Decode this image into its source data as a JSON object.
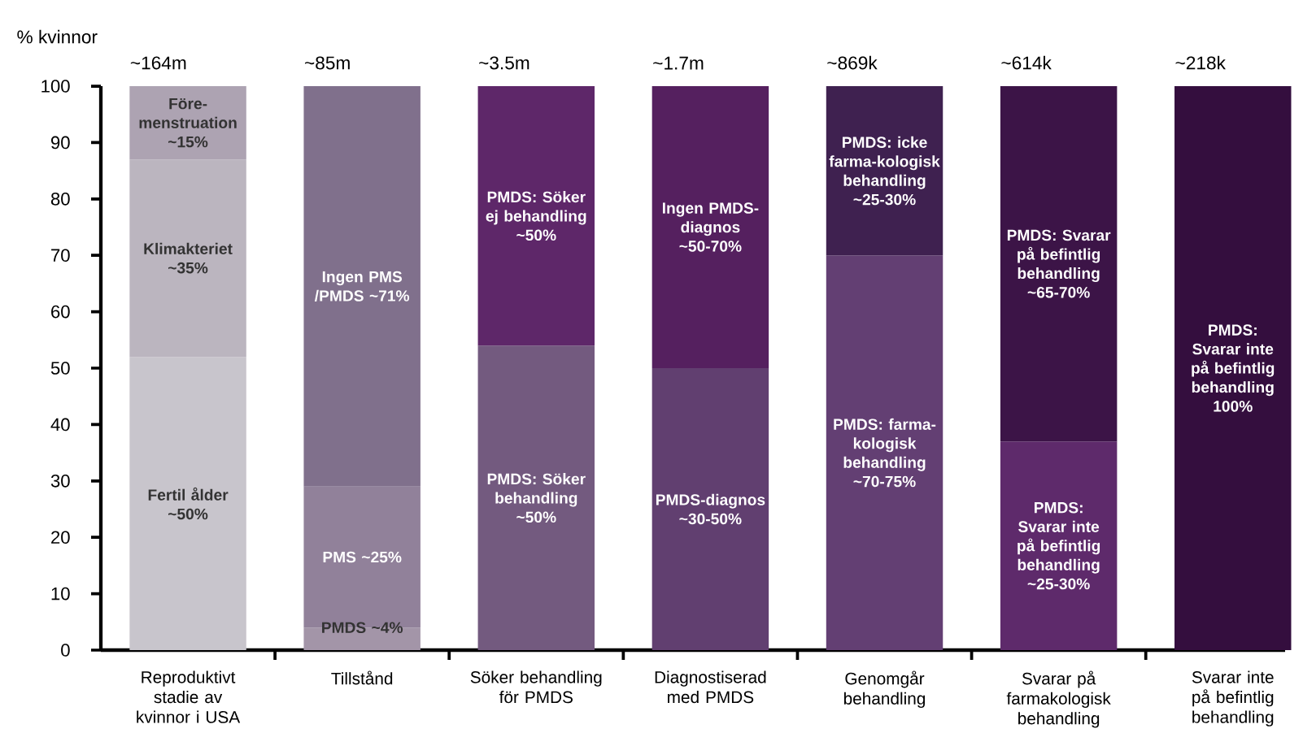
{
  "chart_data": {
    "type": "bar",
    "stacked": true,
    "ylabel": "% kvinnor",
    "ylim": [
      0,
      100
    ],
    "yticks": [
      0,
      10,
      20,
      30,
      40,
      50,
      60,
      70,
      80,
      90,
      100
    ],
    "categories": [
      "Reproduktivt stadie av kvinnor i USA",
      "Tillstånd",
      "Söker behandling för PMDS",
      "Diagnostiserad med PMDS",
      "Genomgår behandling",
      "Svarar på farmakologisk behandling",
      "Svarar inte på befintlig behandling"
    ],
    "series": [
      {
        "colors": [
          "#c8c5cc",
          "#a395a8",
          "#735a7f",
          "#613f70",
          "#633f73",
          "#5e2a6b",
          "#340e3e"
        ],
        "values": [
          52,
          4,
          54,
          50,
          70,
          37,
          100
        ]
      },
      {
        "colors": [
          "#bbb5bf",
          "#91819a",
          "#5e2769",
          "#55205f",
          "#3f2150",
          "#3c1447",
          null
        ],
        "values": [
          35,
          25,
          46,
          50,
          30,
          63,
          null
        ]
      },
      {
        "colors": [
          "#ada3b2",
          "#80708c",
          null,
          null,
          null,
          null,
          null
        ],
        "values": [
          13,
          71,
          null,
          null,
          null,
          null,
          null
        ]
      }
    ],
    "annotations": [
      "~164m",
      "~85m",
      "~3.5m",
      "~1.7m",
      "~869k",
      "~614k",
      "~218k",
      "Fertil ålder ~50%",
      "PMDS ~4%",
      "PMDS: Söker behandling ~50%",
      "PMDS-diagnos ~30-50%",
      "PMDS: farma-kologisk behandling ~70-75%",
      "PMDS: Svarar inte på befintlig behandling ~25-30%",
      "PMDS: Svarar inte på befintlig behandling 100%",
      "Klimakteriet ~35%",
      "PMS ~25%",
      "PMDS: Söker ej behandling ~50%",
      "Ingen PMDS-diagnos ~50-70%",
      "PMDS: icke farma-kologisk behandling ~25-30%",
      "PMDS: Svarar på befintlig behandling ~65-70%",
      "Före-menstruation ~15%",
      "Ingen PMS /PMDS ~71%"
    ]
  }
}
